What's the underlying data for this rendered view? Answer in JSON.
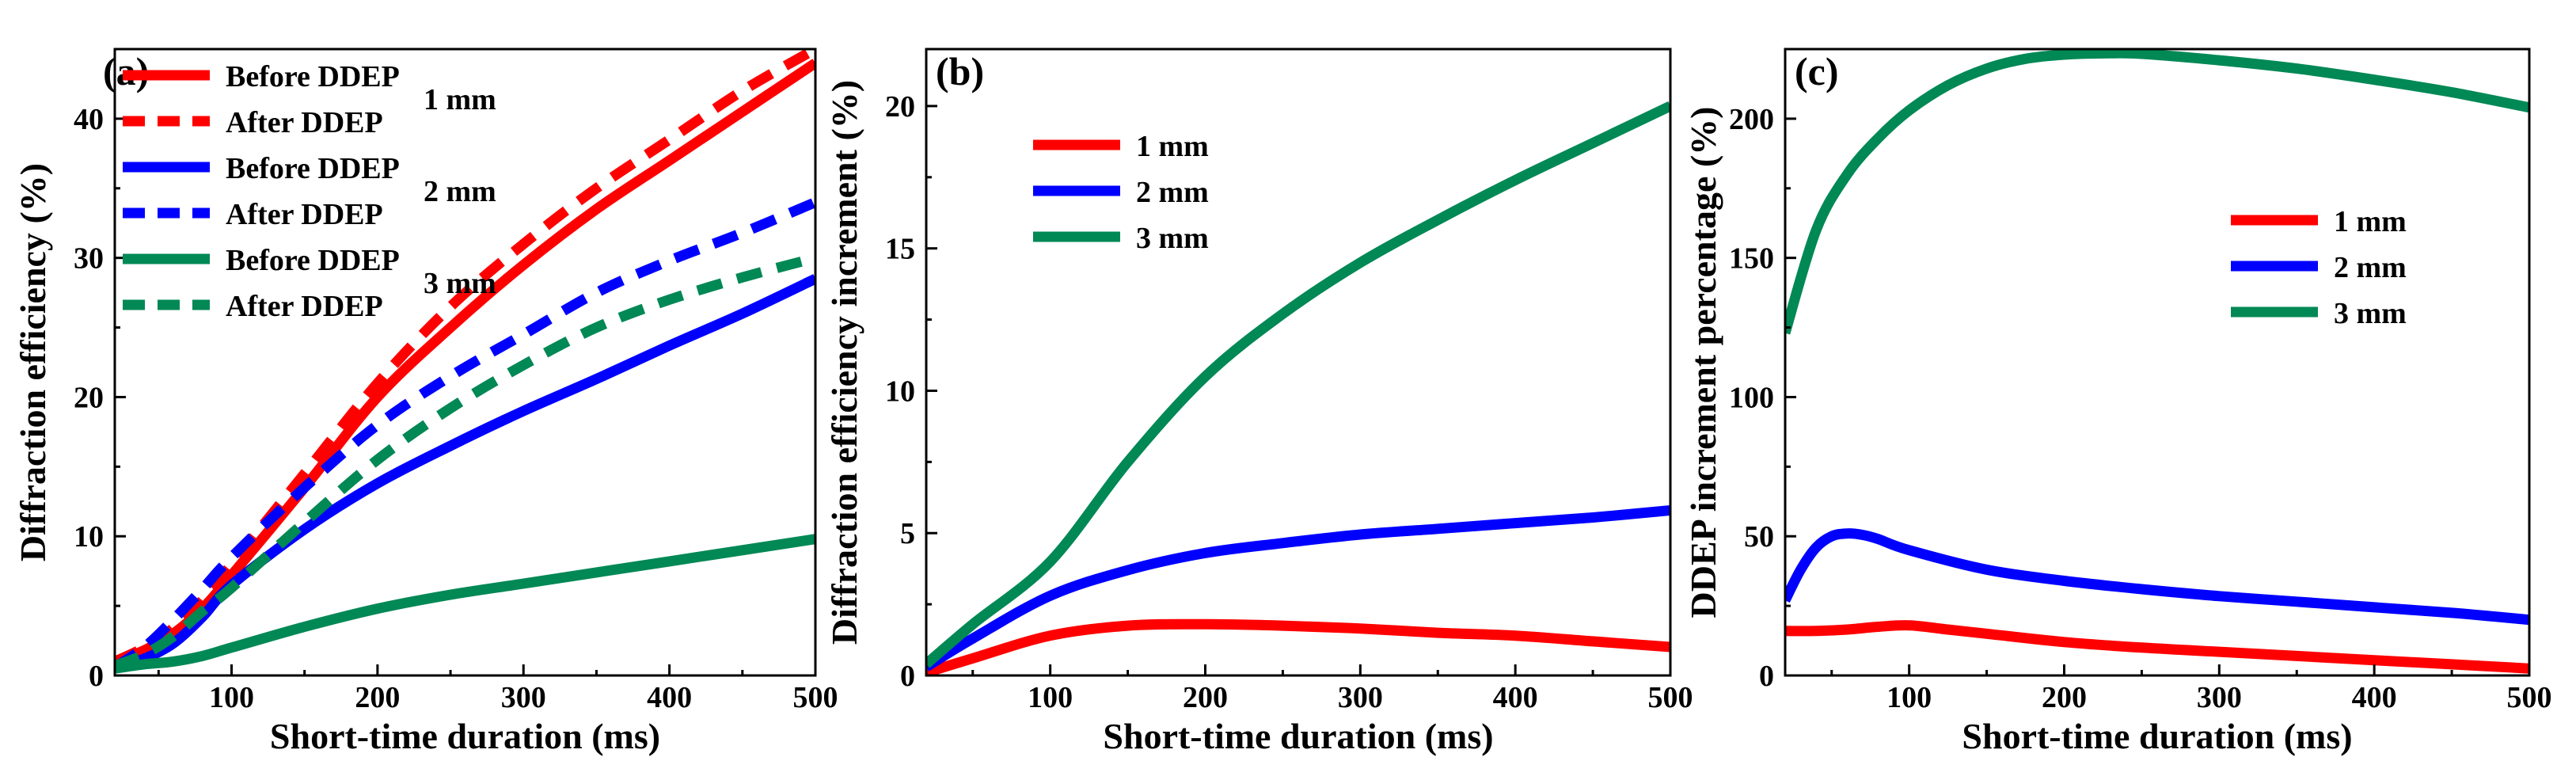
{
  "chart_data": [
    {
      "type": "line",
      "panel_label": "(a)",
      "xlabel": "Short-time duration (ms)",
      "ylabel": "Diffraction efficiency (%)",
      "xlim": [
        20,
        500
      ],
      "ylim": [
        0,
        45
      ],
      "x_ticks": [
        100,
        200,
        300,
        400,
        500
      ],
      "y_ticks": [
        0,
        10,
        20,
        30,
        40
      ],
      "grid": false,
      "legend": {
        "placement": "top-left",
        "entries": [
          {
            "label": "Before DDEP",
            "color": "#ff0000",
            "dash": "solid"
          },
          {
            "label": "After DDEP",
            "color": "#ff0000",
            "dash": "dashed"
          },
          {
            "label": "Before DDEP",
            "color": "#0000ff",
            "dash": "solid"
          },
          {
            "label": "After DDEP",
            "color": "#0000ff",
            "dash": "dashed"
          },
          {
            "label": "Before DDEP",
            "color": "#008855",
            "dash": "solid"
          },
          {
            "label": "After DDEP",
            "color": "#008855",
            "dash": "dashed"
          }
        ],
        "group_labels": [
          "1 mm",
          "2 mm",
          "3 mm"
        ]
      },
      "series": [
        {
          "color": "#ff0000",
          "dash": "solid",
          "x": [
            20,
            40,
            60,
            80,
            100,
            150,
            200,
            250,
            300,
            350,
            400,
            450,
            500
          ],
          "y": [
            1,
            1.8,
            3,
            4.8,
            7.2,
            13.5,
            20,
            25,
            29.5,
            33.5,
            37,
            40.5,
            44
          ]
        },
        {
          "color": "#ff0000",
          "dash": "dashed",
          "x": [
            20,
            40,
            60,
            80,
            100,
            150,
            200,
            250,
            300,
            350,
            400,
            450,
            500
          ],
          "y": [
            1,
            2,
            3.4,
            5.4,
            8,
            14.5,
            21,
            26.5,
            31,
            35,
            38.5,
            42,
            45
          ]
        },
        {
          "color": "#0000ff",
          "dash": "solid",
          "x": [
            20,
            40,
            60,
            80,
            100,
            150,
            200,
            250,
            300,
            350,
            400,
            450,
            500
          ],
          "y": [
            0.6,
            1.2,
            2.3,
            4.2,
            6.5,
            10.5,
            13.8,
            16.5,
            19,
            21.3,
            23.7,
            26,
            28.5
          ]
        },
        {
          "color": "#0000ff",
          "dash": "dashed",
          "x": [
            20,
            40,
            60,
            80,
            100,
            150,
            200,
            250,
            300,
            350,
            400,
            450,
            500
          ],
          "y": [
            0.6,
            2,
            4,
            6.2,
            8.5,
            13.5,
            18,
            21.5,
            24.5,
            27.5,
            29.8,
            31.8,
            34
          ]
        },
        {
          "color": "#008855",
          "dash": "solid",
          "x": [
            20,
            40,
            60,
            80,
            100,
            150,
            200,
            250,
            300,
            350,
            400,
            450,
            500
          ],
          "y": [
            0.5,
            0.8,
            1,
            1.4,
            2,
            3.5,
            4.8,
            5.8,
            6.6,
            7.4,
            8.2,
            9,
            9.8
          ]
        },
        {
          "color": "#008855",
          "dash": "dashed",
          "x": [
            20,
            40,
            60,
            80,
            100,
            150,
            200,
            250,
            300,
            350,
            400,
            450,
            500
          ],
          "y": [
            0.7,
            1.5,
            2.8,
            4.6,
            6.3,
            11,
            15.5,
            19.2,
            22.3,
            25,
            27,
            28.6,
            30
          ]
        }
      ]
    },
    {
      "type": "line",
      "panel_label": "(b)",
      "xlabel": "Short-time duration (ms)",
      "ylabel": "Diffraction efficiency increment (%)",
      "xlim": [
        20,
        500
      ],
      "ylim": [
        0,
        22
      ],
      "x_ticks": [
        100,
        200,
        300,
        400,
        500
      ],
      "y_ticks": [
        0,
        5,
        10,
        15,
        20
      ],
      "grid": false,
      "legend": {
        "placement": "top-left",
        "entries": [
          {
            "label": "1 mm",
            "color": "#ff0000",
            "dash": "solid"
          },
          {
            "label": "2 mm",
            "color": "#0000ff",
            "dash": "solid"
          },
          {
            "label": "3 mm",
            "color": "#008855",
            "dash": "solid"
          }
        ]
      },
      "series": [
        {
          "name": "1 mm",
          "color": "#ff0000",
          "x": [
            20,
            50,
            100,
            150,
            200,
            250,
            300,
            350,
            400,
            450,
            500
          ],
          "y": [
            0.1,
            0.6,
            1.4,
            1.75,
            1.8,
            1.75,
            1.65,
            1.5,
            1.4,
            1.2,
            1.0
          ]
        },
        {
          "name": "2 mm",
          "color": "#0000ff",
          "x": [
            20,
            50,
            100,
            150,
            200,
            250,
            300,
            350,
            400,
            450,
            500
          ],
          "y": [
            0.3,
            1.3,
            2.8,
            3.7,
            4.3,
            4.65,
            4.95,
            5.15,
            5.35,
            5.55,
            5.8
          ]
        },
        {
          "name": "3 mm",
          "color": "#008855",
          "x": [
            20,
            50,
            100,
            150,
            200,
            250,
            300,
            350,
            400,
            450,
            500
          ],
          "y": [
            0.4,
            1.8,
            4,
            7.5,
            10.5,
            12.7,
            14.5,
            16,
            17.4,
            18.7,
            20
          ]
        }
      ]
    },
    {
      "type": "line",
      "panel_label": "(c)",
      "xlabel": "Short-time duration (ms)",
      "ylabel": "DDEP increment percentage (%)",
      "xlim": [
        20,
        500
      ],
      "ylim": [
        0,
        225
      ],
      "x_ticks": [
        100,
        200,
        300,
        400,
        500
      ],
      "y_ticks": [
        0,
        50,
        100,
        150,
        200
      ],
      "grid": false,
      "legend": {
        "placement": "center-right",
        "entries": [
          {
            "label": "1 mm",
            "color": "#ff0000",
            "dash": "solid"
          },
          {
            "label": "2 mm",
            "color": "#0000ff",
            "dash": "solid"
          },
          {
            "label": "3 mm",
            "color": "#008855",
            "dash": "solid"
          }
        ]
      },
      "series": [
        {
          "name": "1 mm",
          "color": "#ff0000",
          "x": [
            20,
            40,
            60,
            80,
            100,
            125,
            150,
            200,
            250,
            300,
            350,
            400,
            450,
            500
          ],
          "y": [
            16,
            16,
            16.5,
            17.5,
            18,
            16.5,
            15,
            12,
            10,
            8.5,
            7,
            5.5,
            4,
            2.5
          ]
        },
        {
          "name": "2 mm",
          "color": "#0000ff",
          "x": [
            20,
            30,
            40,
            50,
            60,
            70,
            80,
            100,
            150,
            200,
            250,
            300,
            350,
            400,
            450,
            500
          ],
          "y": [
            27,
            38,
            46,
            50,
            51,
            50.5,
            49,
            45,
            38,
            34,
            31,
            28.5,
            26.5,
            24.5,
            22.5,
            20
          ]
        },
        {
          "name": "3 mm",
          "color": "#008855",
          "x": [
            20,
            40,
            60,
            80,
            100,
            125,
            150,
            175,
            200,
            230,
            250,
            300,
            350,
            400,
            450,
            500
          ],
          "y": [
            123,
            160,
            180,
            193,
            203,
            212,
            218,
            221.5,
            223,
            223.5,
            223.3,
            221,
            218,
            214,
            209.5,
            204
          ]
        }
      ]
    }
  ]
}
